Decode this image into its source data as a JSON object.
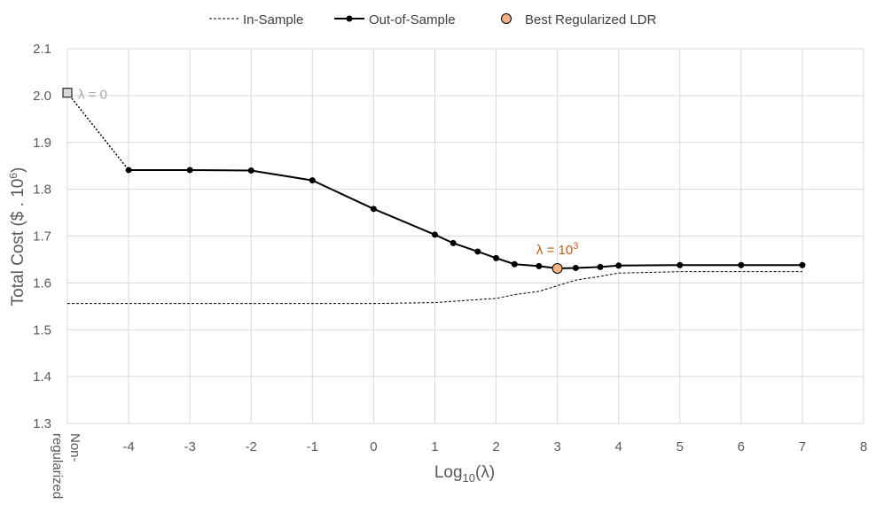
{
  "chart_data": {
    "type": "line",
    "title": "",
    "xlabel": "Log",
    "xlabel_sub": "10",
    "xlabel_suffix": "(λ)",
    "ylabel": "Total Cost ($ . 10",
    "ylabel_sup": "6",
    "ylabel_suffix": ")",
    "xlim": [
      -5,
      8
    ],
    "ylim": [
      1.3,
      2.1
    ],
    "grid": true,
    "legend_position": "top",
    "x_ticks": [
      -4,
      -3,
      -2,
      -1,
      0,
      1,
      2,
      3,
      4,
      5,
      6,
      7,
      8
    ],
    "y_ticks": [
      1.3,
      1.4,
      1.5,
      1.6,
      1.7,
      1.8,
      1.9,
      2.0,
      2.1
    ],
    "x_special_tick": {
      "x": -5,
      "lines": [
        "Non-",
        "regularized"
      ]
    },
    "series": [
      {
        "name": "In-Sample",
        "style": "dashed",
        "color": "#000000",
        "x": [
          -5,
          -4,
          -3,
          -2,
          -1,
          0,
          1,
          2,
          2.3,
          2.7,
          3,
          3.3,
          3.7,
          4,
          5,
          6,
          7
        ],
        "values": [
          1.556,
          1.556,
          1.556,
          1.556,
          1.556,
          1.556,
          1.558,
          1.567,
          1.575,
          1.582,
          1.594,
          1.606,
          1.614,
          1.621,
          1.624,
          1.624,
          1.624
        ]
      },
      {
        "name": "Out-of-Sample",
        "style": "solid-markers",
        "color": "#000000",
        "x": [
          -4,
          -3,
          -2,
          -1,
          0,
          1,
          1.3,
          1.7,
          2,
          2.3,
          2.7,
          3,
          3.3,
          3.7,
          4,
          5,
          6,
          7
        ],
        "values": [
          1.841,
          1.841,
          1.84,
          1.819,
          1.758,
          1.703,
          1.685,
          1.667,
          1.653,
          1.64,
          1.636,
          1.631,
          1.632,
          1.634,
          1.637,
          1.638,
          1.638,
          1.638
        ]
      },
      {
        "name": "Best Regularized LDR",
        "style": "marker",
        "color": "#f4b183",
        "x": [
          3
        ],
        "values": [
          1.631
        ]
      }
    ],
    "nonregularized_point": {
      "x": -5,
      "y": 2.006,
      "label": "λ = 0"
    },
    "best_annotation": {
      "text": "λ = 10",
      "sup": "3",
      "color": "#c55a11"
    }
  }
}
